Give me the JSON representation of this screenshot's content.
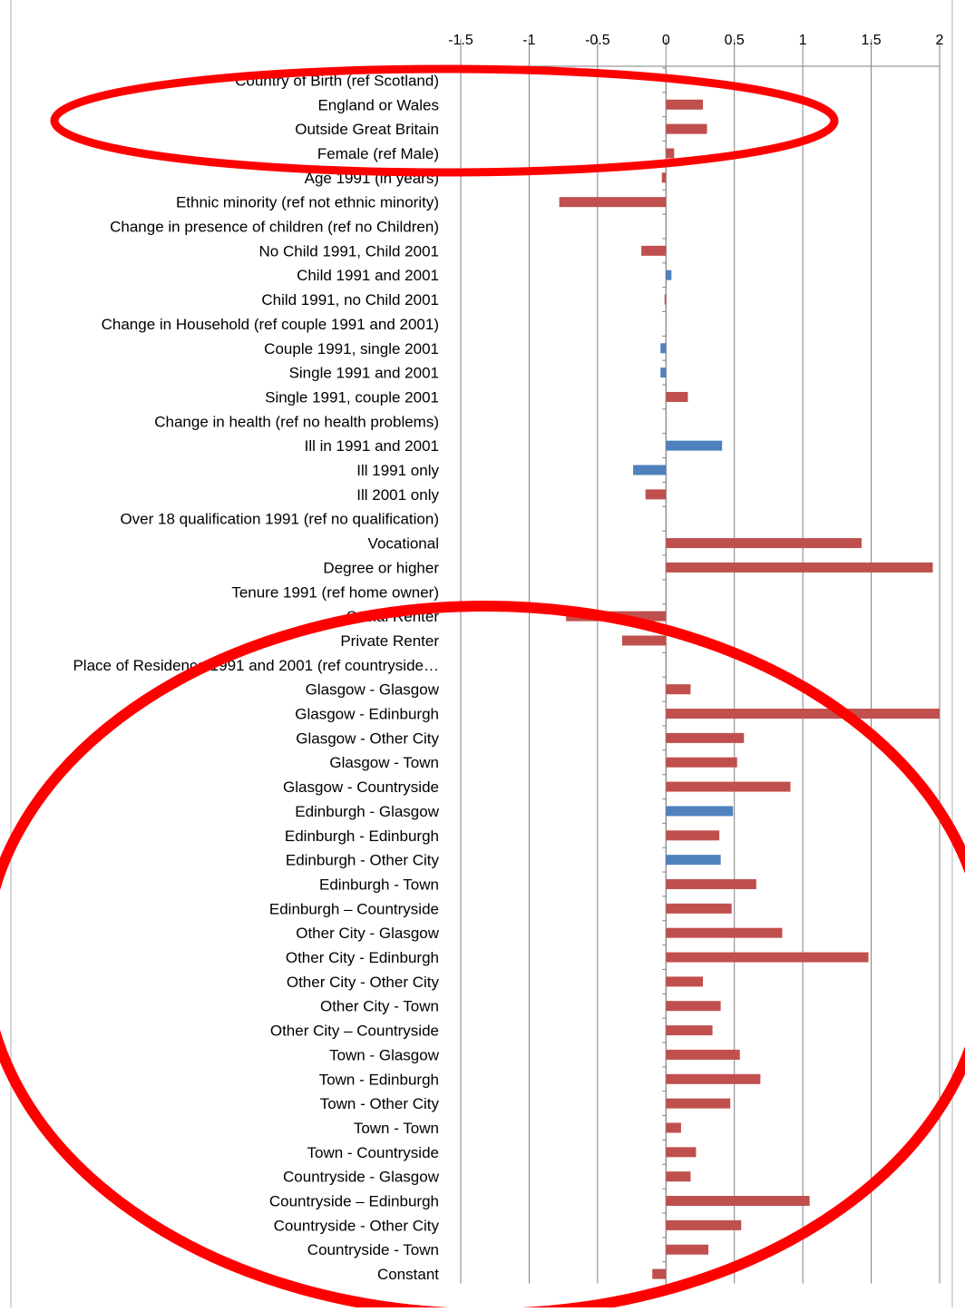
{
  "chart_data": {
    "type": "bar",
    "orientation": "horizontal",
    "title": "",
    "xlabel": "",
    "ylabel": "",
    "xlim": [
      -1.5,
      2
    ],
    "xticks": [
      -1.5,
      -1,
      -0.5,
      0,
      0.5,
      1,
      1.5,
      2
    ],
    "xtick_labels": [
      "-1.5",
      "-1",
      "-0.5",
      "0",
      "0.5",
      "1",
      "1.5",
      "2"
    ],
    "grid": "vertical",
    "axis_position": "top",
    "legend": "none",
    "colors": {
      "significant": "#c0504d",
      "not_significant": "#4f81bd",
      "highlight": "#ff0000",
      "grid": "#808080"
    },
    "categories": [
      "Country of Birth (ref Scotland)",
      "England or Wales",
      "Outside Great Britain",
      "Female (ref Male)",
      "Age 1991 (in years)",
      "Ethnic minority (ref not ethnic minority)",
      "Change in presence of children (ref no Children)",
      "No Child 1991, Child 2001",
      "Child 1991 and 2001",
      "Child 1991, no Child 2001",
      "Change in Household (ref couple 1991 and 2001)",
      "Couple 1991, single 2001",
      "Single 1991 and 2001",
      "Single 1991, couple 2001",
      "Change in health (ref no health problems)",
      "Ill in 1991 and 2001",
      "Ill 1991 only",
      "Ill 2001 only",
      "Over 18 qualification 1991 (ref no qualification)",
      "Vocational",
      "Degree or higher",
      "Tenure 1991 (ref home owner)",
      "Social Renter",
      "Private Renter",
      "Place of Residence 1991 and 2001 (ref countryside…",
      "Glasgow  - Glasgow",
      "Glasgow  - Edinburgh",
      "Glasgow  - Other City",
      "Glasgow  - Town",
      "Glasgow  - Countryside",
      "Edinburgh - Glasgow",
      "Edinburgh - Edinburgh",
      "Edinburgh - Other City",
      "Edinburgh - Town",
      "Edinburgh – Countryside",
      "Other City - Glasgow",
      "Other City - Edinburgh",
      "Other City - Other City",
      "Other City - Town",
      "Other City – Countryside",
      "Town  - Glasgow",
      "Town  - Edinburgh",
      "Town  - Other City",
      "Town  - Town",
      "Town  - Countryside",
      "Countryside - Glasgow",
      "Countryside – Edinburgh",
      "Countryside - Other City",
      "Countryside - Town",
      "Constant"
    ],
    "values": [
      null,
      0.27,
      0.3,
      0.06,
      -0.03,
      -0.78,
      null,
      -0.18,
      0.04,
      -0.01,
      null,
      -0.04,
      -0.04,
      0.16,
      null,
      0.41,
      -0.24,
      -0.15,
      null,
      1.43,
      1.95,
      null,
      -0.73,
      -0.32,
      null,
      0.18,
      2.0,
      0.57,
      0.52,
      0.91,
      0.49,
      0.39,
      0.4,
      0.66,
      0.48,
      0.85,
      1.48,
      0.27,
      0.4,
      0.34,
      0.54,
      0.69,
      0.47,
      0.11,
      0.22,
      0.18,
      1.05,
      0.55,
      0.31,
      -0.1
    ],
    "bar_colors": [
      "",
      "#c0504d",
      "#c0504d",
      "#c0504d",
      "#c0504d",
      "#c0504d",
      "",
      "#c0504d",
      "#4f81bd",
      "#c0504d",
      "",
      "#4f81bd",
      "#4f81bd",
      "#c0504d",
      "",
      "#4f81bd",
      "#4f81bd",
      "#c0504d",
      "",
      "#c0504d",
      "#c0504d",
      "",
      "#c0504d",
      "#c0504d",
      "",
      "#c0504d",
      "#c0504d",
      "#c0504d",
      "#c0504d",
      "#c0504d",
      "#4f81bd",
      "#c0504d",
      "#4f81bd",
      "#c0504d",
      "#c0504d",
      "#c0504d",
      "#c0504d",
      "#c0504d",
      "#c0504d",
      "#c0504d",
      "#c0504d",
      "#c0504d",
      "#c0504d",
      "#c0504d",
      "#c0504d",
      "#c0504d",
      "#c0504d",
      "#c0504d",
      "#c0504d",
      "#c0504d"
    ],
    "annotations": [
      {
        "type": "ellipse",
        "color": "#ff0000",
        "encloses": [
          "Country of Birth (ref Scotland)",
          "England or Wales",
          "Outside Great Britain",
          "Female (ref Male)"
        ]
      },
      {
        "type": "ellipse",
        "color": "#ff0000",
        "encloses": [
          "Social Renter",
          "Private Renter",
          "Place of Residence 1991 and 2001 (ref countryside…",
          "Glasgow  - Glasgow",
          "Constant"
        ]
      }
    ]
  }
}
